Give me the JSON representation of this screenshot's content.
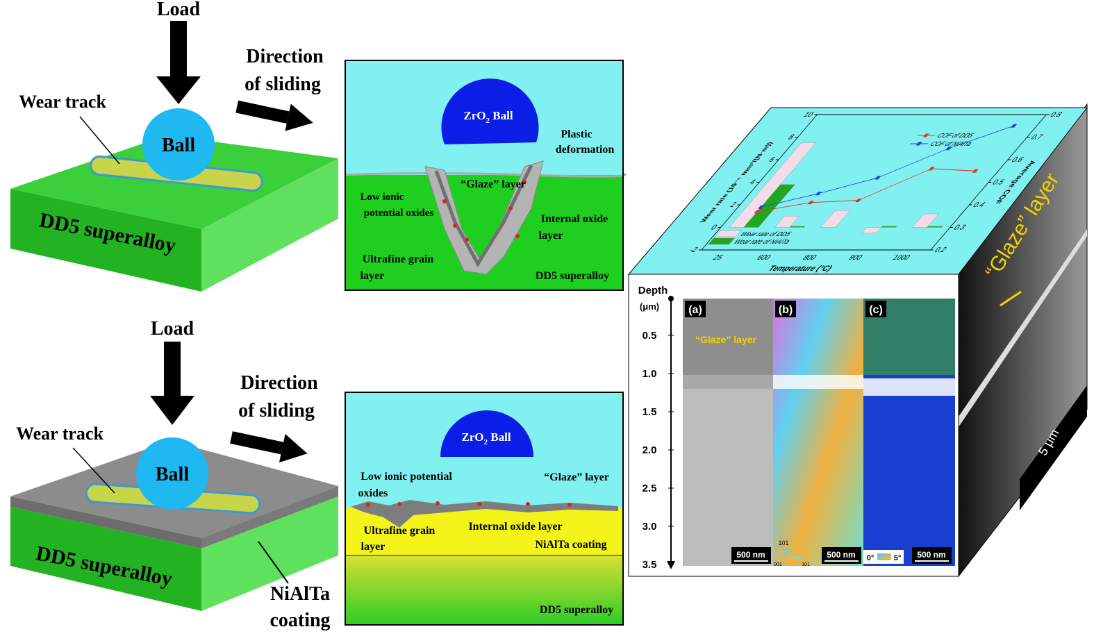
{
  "top_schematic": {
    "load": "Load",
    "direction": [
      "Direction",
      "of sliding"
    ],
    "wear_track": "Wear track",
    "ball": "Ball",
    "substrate": "DD5 superalloy"
  },
  "top_section": {
    "ball": [
      "ZrO",
      "2",
      " Ball"
    ],
    "plastic_deformation": [
      "Plastic",
      "deformation"
    ],
    "glaze": "“Glaze” layer",
    "low_ionic": [
      "Low ionic",
      "potential oxides"
    ],
    "internal_oxide": [
      "Internal oxide",
      "layer"
    ],
    "ultrafine": [
      "Ultrafine grain",
      "layer"
    ],
    "substrate": "DD5 superalloy"
  },
  "bottom_schematic": {
    "load": "Load",
    "direction": [
      "Direction",
      "of sliding"
    ],
    "wear_track": "Wear track",
    "ball": "Ball",
    "substrate": "DD5 superalloy",
    "coating": [
      "NiAlTa",
      "coating"
    ]
  },
  "bottom_section": {
    "ball": [
      "ZrO",
      "2",
      " Ball"
    ],
    "low_ionic": [
      "Low ionic potential",
      "oxides"
    ],
    "glaze": "“Glaze” layer",
    "internal_oxide": "Internal oxide layer",
    "ultrafine": [
      "Ultrafine grain",
      "layer"
    ],
    "coating": "NiAlTa coating",
    "substrate": "DD5 superalloy"
  },
  "chart_data": {
    "type": "combo",
    "xlabel": "Temperature (°C)",
    "ylabel": "Wear rate (10⁻⁵ mm³/(N·m))",
    "y2label": "Average COF",
    "categories": [
      "25",
      "600",
      "800",
      "900",
      "1000"
    ],
    "ylim": [
      -2,
      10
    ],
    "yticks": [
      -2,
      0,
      2,
      4,
      6,
      8,
      10
    ],
    "y2lim": [
      0.2,
      0.8
    ],
    "y2ticks": [
      0.2,
      0.3,
      0.4,
      0.5,
      0.6,
      0.7,
      0.8
    ],
    "series": [
      {
        "name": "Wear rate of DD5",
        "type": "bar",
        "color": "#f3dcea",
        "values": [
          7.5,
          1,
          1.5,
          -0.5,
          1.2
        ]
      },
      {
        "name": "Wear rate of NiAlTa",
        "type": "bar",
        "color": "#1fa81f",
        "values": [
          3.8,
          0.1,
          0,
          0.1,
          0.1
        ]
      },
      {
        "name": "COF of DD5",
        "type": "line",
        "axis": "y2",
        "color": "#e8322a",
        "values": [
          0.37,
          0.41,
          0.42,
          0.56,
          0.55
        ]
      },
      {
        "name": "COF of NiAlTa",
        "type": "line",
        "axis": "y2",
        "color": "#2340d8",
        "values": [
          0.39,
          0.45,
          0.52,
          0.65,
          0.75
        ]
      }
    ]
  },
  "micrographs": {
    "depth_label": "Depth",
    "depth_unit": "(μm)",
    "depth_ticks": [
      "0.5",
      "1.0",
      "1.5",
      "2.0",
      "2.5",
      "3.0",
      "3.5"
    ],
    "panels": [
      {
        "label": "(a)",
        "scale": "500 nm",
        "note": "“Glaze” layer"
      },
      {
        "label": "(b)",
        "scale": "500 nm",
        "legend": [
          "101",
          "001",
          "101"
        ]
      },
      {
        "label": "(c)",
        "scale": "500 nm",
        "legend": [
          "0°",
          "5°"
        ]
      }
    ],
    "side_label": "“Glaze” layer",
    "side_scale": "5 μm"
  }
}
